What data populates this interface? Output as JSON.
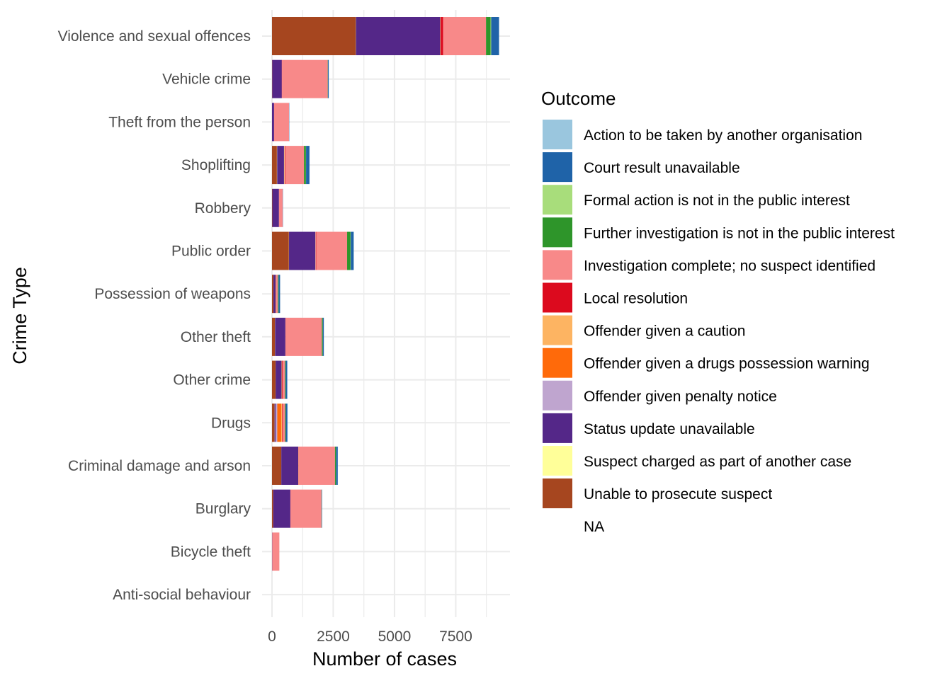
{
  "chart_data": {
    "type": "bar",
    "orientation": "horizontal",
    "stacked": true,
    "xlabel": "Number of cases",
    "ylabel": "Crime Type",
    "xlim": [
      0,
      9700
    ],
    "xticks": [
      0,
      2500,
      5000,
      7500
    ],
    "grid": true,
    "legend_position": "right",
    "categories": [
      "Violence and sexual offences",
      "Vehicle crime",
      "Theft from the person",
      "Shoplifting",
      "Robbery",
      "Public order",
      "Possession of weapons",
      "Other theft",
      "Other crime",
      "Drugs",
      "Criminal damage and arson",
      "Burglary",
      "Bicycle theft",
      "Anti-social behaviour"
    ],
    "series": [
      {
        "name": "Unable to prosecute suspect",
        "color": "#A6461F",
        "values": [
          3420,
          10,
          0,
          200,
          15,
          690,
          60,
          120,
          150,
          100,
          380,
          50,
          0,
          0
        ]
      },
      {
        "name": "Suspect charged as part of another case",
        "color": "#FFFF99",
        "values": [
          5,
          0,
          0,
          10,
          0,
          5,
          0,
          5,
          0,
          5,
          0,
          0,
          0,
          0
        ]
      },
      {
        "name": "Status update unavailable",
        "color": "#542788",
        "values": [
          3440,
          390,
          85,
          280,
          270,
          1070,
          90,
          420,
          240,
          40,
          690,
          700,
          10,
          0
        ]
      },
      {
        "name": "Offender given penalty notice",
        "color": "#BFA5CF",
        "values": [
          0,
          0,
          0,
          10,
          0,
          10,
          0,
          5,
          0,
          70,
          0,
          0,
          0,
          0
        ]
      },
      {
        "name": "Offender given a drugs possession warning",
        "color": "#FF6A0A",
        "values": [
          0,
          0,
          0,
          0,
          0,
          0,
          0,
          0,
          0,
          160,
          0,
          0,
          0,
          0
        ]
      },
      {
        "name": "Offender given a caution",
        "color": "#FDB462",
        "values": [
          20,
          0,
          0,
          20,
          0,
          10,
          10,
          5,
          20,
          40,
          10,
          0,
          0,
          0
        ]
      },
      {
        "name": "Local resolution",
        "color": "#DC0A1E",
        "values": [
          100,
          5,
          0,
          15,
          0,
          20,
          10,
          10,
          30,
          30,
          10,
          0,
          0,
          0
        ]
      },
      {
        "name": "Investigation complete; no suspect identified",
        "color": "#F88989",
        "values": [
          1750,
          1870,
          610,
          770,
          150,
          1260,
          70,
          1470,
          90,
          90,
          1480,
          1270,
          290,
          0
        ]
      },
      {
        "name": "Further investigation is not in the public interest",
        "color": "#2E952A",
        "values": [
          190,
          10,
          0,
          80,
          0,
          140,
          30,
          40,
          30,
          30,
          40,
          10,
          0,
          0
        ]
      },
      {
        "name": "Formal action is not in the public interest",
        "color": "#A8DD7B",
        "values": [
          20,
          0,
          0,
          5,
          0,
          10,
          0,
          0,
          0,
          0,
          5,
          0,
          0,
          0
        ]
      },
      {
        "name": "Court result unavailable",
        "color": "#1F63A8",
        "values": [
          320,
          30,
          10,
          140,
          10,
          120,
          60,
          40,
          60,
          65,
          70,
          15,
          0,
          0
        ]
      },
      {
        "name": "Action to be taken by another organisation",
        "color": "#9AC6DE",
        "values": [
          5,
          5,
          0,
          5,
          0,
          5,
          0,
          5,
          10,
          10,
          5,
          0,
          0,
          0
        ]
      }
    ],
    "legend": {
      "title": "Outcome",
      "entries": [
        {
          "label": "Action to be taken by another organisation",
          "color": "#9AC6DE"
        },
        {
          "label": "Court result unavailable",
          "color": "#1F63A8"
        },
        {
          "label": "Formal action is not in the public interest",
          "color": "#A8DD7B"
        },
        {
          "label": "Further investigation is not in the public interest",
          "color": "#2E952A"
        },
        {
          "label": "Investigation complete; no suspect identified",
          "color": "#F88989"
        },
        {
          "label": "Local resolution",
          "color": "#DC0A1E"
        },
        {
          "label": "Offender given a caution",
          "color": "#FDB462"
        },
        {
          "label": "Offender given a drugs possession warning",
          "color": "#FF6A0A"
        },
        {
          "label": "Offender given penalty notice",
          "color": "#BFA5CF"
        },
        {
          "label": "Status update unavailable",
          "color": "#542788"
        },
        {
          "label": "Suspect charged as part of another case",
          "color": "#FFFF99"
        },
        {
          "label": "Unable to prosecute suspect",
          "color": "#A6461F"
        },
        {
          "label": "NA",
          "color": "#FFFFFF"
        }
      ]
    }
  }
}
